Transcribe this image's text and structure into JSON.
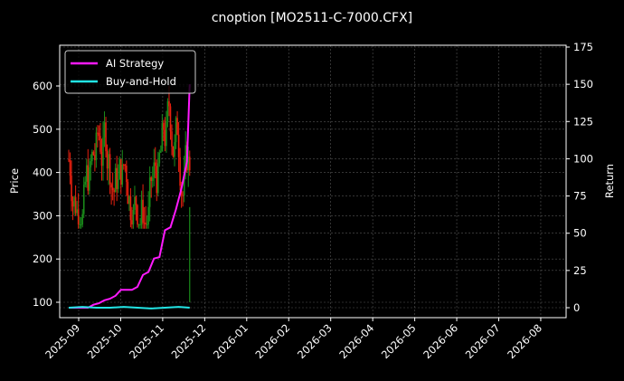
{
  "chart_data": {
    "type": "candlestick+line",
    "title": "cnoption [MO2511-C-7000.CFX]",
    "xlabel": "",
    "ylabel": "Price",
    "y2label": "Return",
    "ylim": [
      65,
      690
    ],
    "y2lim": [
      -5,
      175
    ],
    "yticks": [
      100,
      200,
      300,
      400,
      500,
      600
    ],
    "y2ticks": [
      0,
      25,
      50,
      75,
      100,
      125,
      150,
      175
    ],
    "xticks": [
      "2025-09",
      "2025-10",
      "2025-11",
      "2025-12",
      "2026-01",
      "2026-02",
      "2026-03",
      "2026-04",
      "2026-05",
      "2026-06",
      "2026-07",
      "2026-08"
    ],
    "grid": true,
    "legend_position": "upper left",
    "background": "#000000",
    "colors": {
      "up": "#1a8c1a",
      "down": "#e8200f",
      "ai": "#ff1aff",
      "bh": "#22e5e5",
      "grid": "#555555"
    },
    "series": [
      {
        "name": "AI Strategy",
        "axis": "right",
        "color": "#ff1aff",
        "x_days": [
          0,
          5,
          10,
          14,
          18,
          22,
          26,
          30,
          34,
          38,
          42,
          46,
          50,
          54,
          58,
          62,
          66,
          70,
          74,
          78,
          82,
          86,
          88
        ],
        "values": [
          0,
          0,
          0,
          0,
          2,
          3,
          5,
          6,
          8,
          12,
          12,
          12,
          14,
          22,
          24,
          33,
          34,
          52,
          54,
          66,
          80,
          98,
          150
        ]
      },
      {
        "name": "Buy-and-Hold",
        "axis": "right",
        "color": "#22e5e5",
        "x_days": [
          0,
          10,
          20,
          30,
          40,
          50,
          60,
          70,
          80,
          88
        ],
        "values": [
          0,
          0.5,
          0,
          0,
          0.5,
          0,
          -0.5,
          0,
          0.5,
          0
        ]
      }
    ],
    "candles_summary": {
      "start": "2025-08-27",
      "end": "2025-11-24",
      "price_range": [
        270,
        660
      ],
      "last_close_approx": 320
    }
  },
  "legend": {
    "items": [
      {
        "label": "AI Strategy"
      },
      {
        "label": "Buy-and-Hold"
      }
    ]
  }
}
